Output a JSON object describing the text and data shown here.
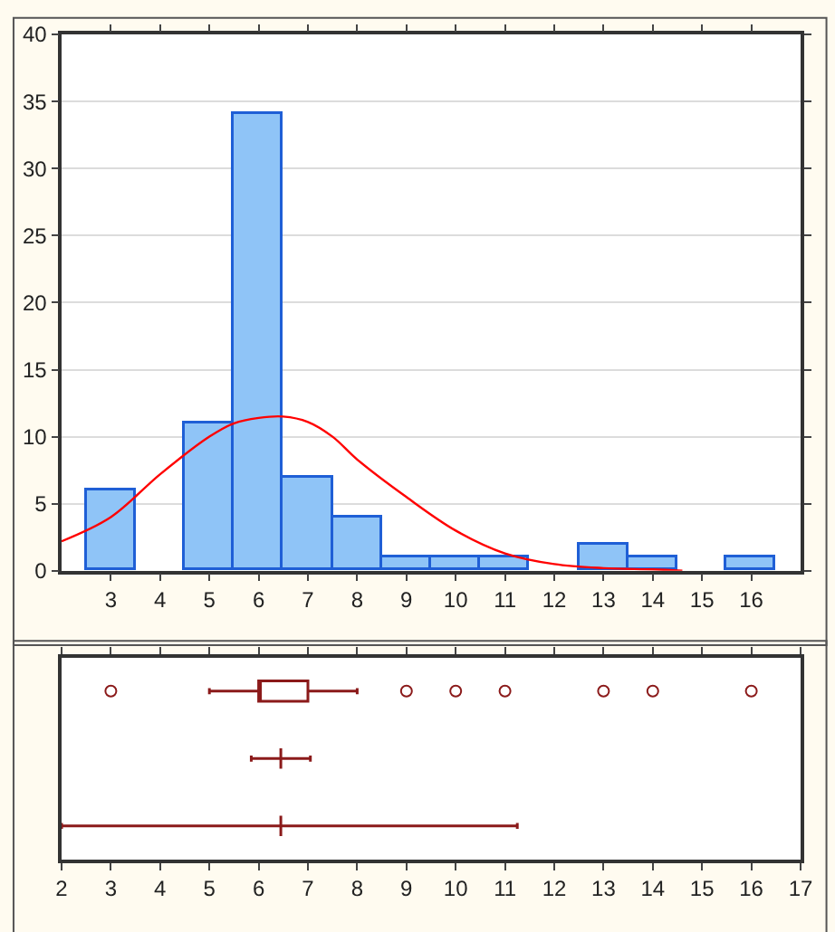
{
  "chart_data": [
    {
      "type": "histogram",
      "xlim": [
        2,
        17
      ],
      "xticks": [
        3,
        4,
        5,
        6,
        7,
        8,
        9,
        10,
        11,
        12,
        13,
        14,
        15,
        16
      ],
      "ylim": [
        0,
        40
      ],
      "yticks": [
        0,
        5,
        10,
        15,
        20,
        25,
        30,
        35,
        40
      ],
      "grid": "y",
      "series": [
        {
          "type": "histogram",
          "color": "#8fc4f7",
          "bins": [
            2.5,
            3.5,
            4.5,
            5.5,
            6.5,
            7.5,
            8.5,
            9.5,
            10.5,
            11.5,
            12.5,
            13.5,
            14.5,
            15.5,
            16.5
          ],
          "values": [
            6,
            0,
            11,
            34,
            7,
            4,
            1,
            1,
            1,
            0,
            2,
            1,
            0,
            1
          ]
        },
        {
          "type": "line",
          "color": "#ff0000",
          "x": [
            2,
            3,
            4,
            5,
            5.5,
            6,
            6.5,
            7,
            7.5,
            8,
            9,
            10,
            11,
            12,
            13,
            14,
            14.6
          ],
          "values": [
            2.2,
            4,
            7.2,
            10,
            11,
            11.4,
            11.5,
            11.1,
            10,
            8.3,
            5.5,
            3,
            1.3,
            0.5,
            0.2,
            0.1,
            0
          ]
        }
      ]
    },
    {
      "type": "box",
      "orientation": "horizontal",
      "xlim": [
        2,
        17
      ],
      "xticks": [
        2,
        3,
        4,
        5,
        6,
        7,
        8,
        9,
        10,
        11,
        12,
        13,
        14,
        15,
        16,
        17
      ],
      "tick_labels": "x",
      "grid": false,
      "categories": [
        null,
        null,
        null
      ],
      "series": [
        {
          "color": "#8b1a1a",
          "boxes": [
            {
              "low": 5,
              "q1": 6,
              "median": 6,
              "q3": 7,
              "high": 8,
              "outliers": [
                3,
                9,
                10,
                11,
                13,
                14,
                16
              ]
            },
            {
              "low": 5.85,
              "q1": 6.45,
              "median": 6.45,
              "q3": 6.45,
              "high": 7.05
            },
            {
              "low": 2,
              "q1": 6.45,
              "median": 6.45,
              "q3": 6.45,
              "high": 11.25
            }
          ]
        }
      ]
    }
  ]
}
